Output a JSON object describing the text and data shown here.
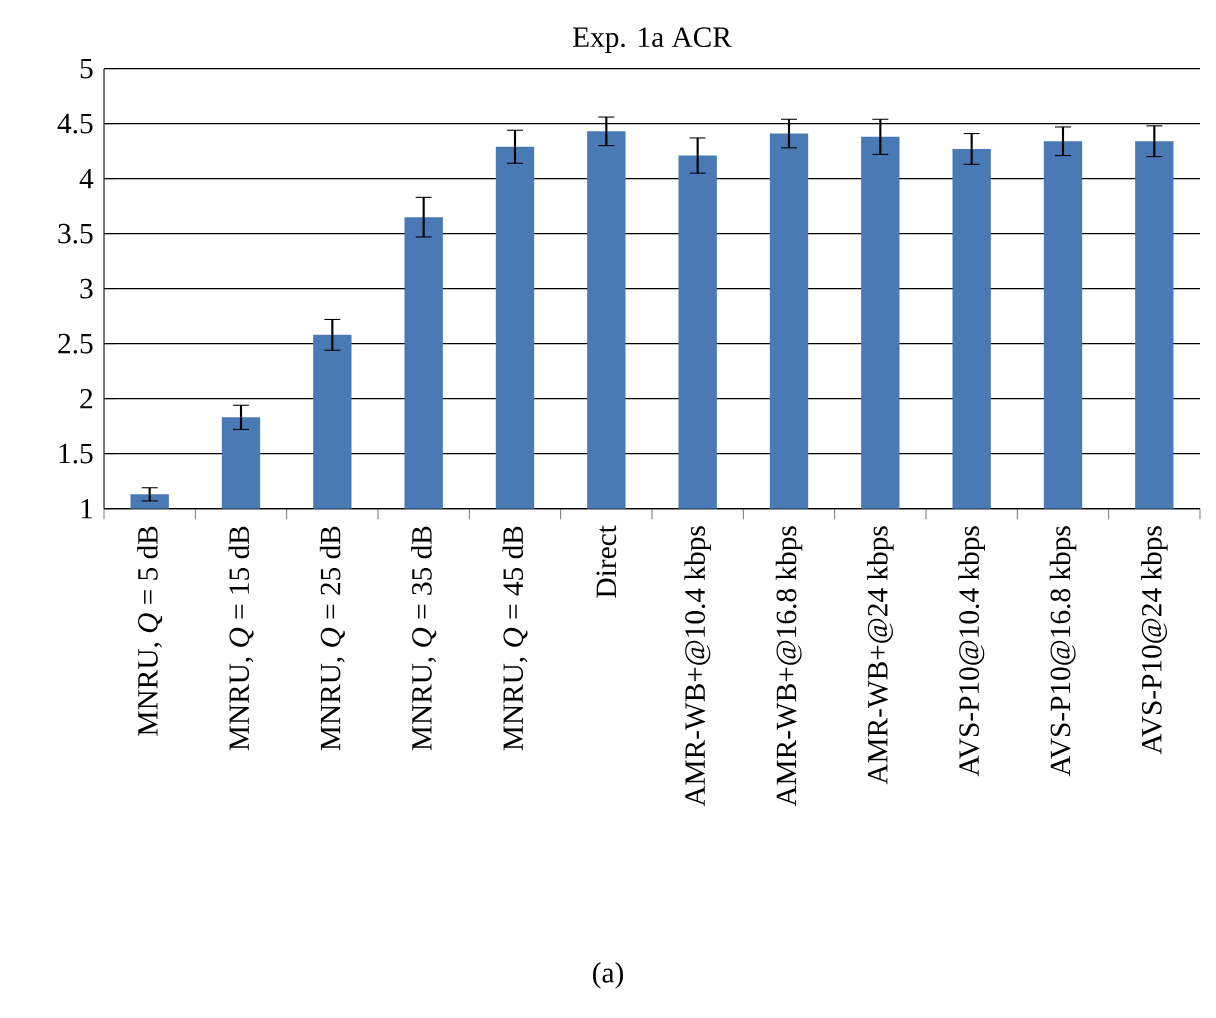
{
  "chart_data": {
    "type": "bar",
    "title": "Exp. 1a ACR",
    "categories": [
      "MNRU, *Q* = 5 dB",
      "MNRU, *Q* = 15 dB",
      "MNRU, *Q* = 25 dB",
      "MNRU, *Q* = 35 dB",
      "MNRU, *Q* = 45 dB",
      "Direct",
      "AMR-WB+@10.4 kbps",
      "AMR-WB+@16.8 kbps",
      "AMR-WB+@24 kbps",
      "AVS-P10@10.4 kbps",
      "AVS-P10@16.8 kbps",
      "AVS-P10@24 kbps"
    ],
    "values": [
      1.13,
      1.83,
      2.58,
      3.65,
      4.29,
      4.43,
      4.21,
      4.41,
      4.38,
      4.27,
      4.34,
      4.34
    ],
    "errors": [
      0.06,
      0.11,
      0.14,
      0.18,
      0.15,
      0.13,
      0.16,
      0.13,
      0.16,
      0.14,
      0.13,
      0.14
    ],
    "color": "#4a7ab5",
    "ylim": [
      1,
      5
    ],
    "yticks": [
      1,
      1.5,
      2,
      2.5,
      3,
      3.5,
      4,
      4.5,
      5
    ],
    "grid": "y",
    "annotations": [
      "(a)"
    ]
  }
}
